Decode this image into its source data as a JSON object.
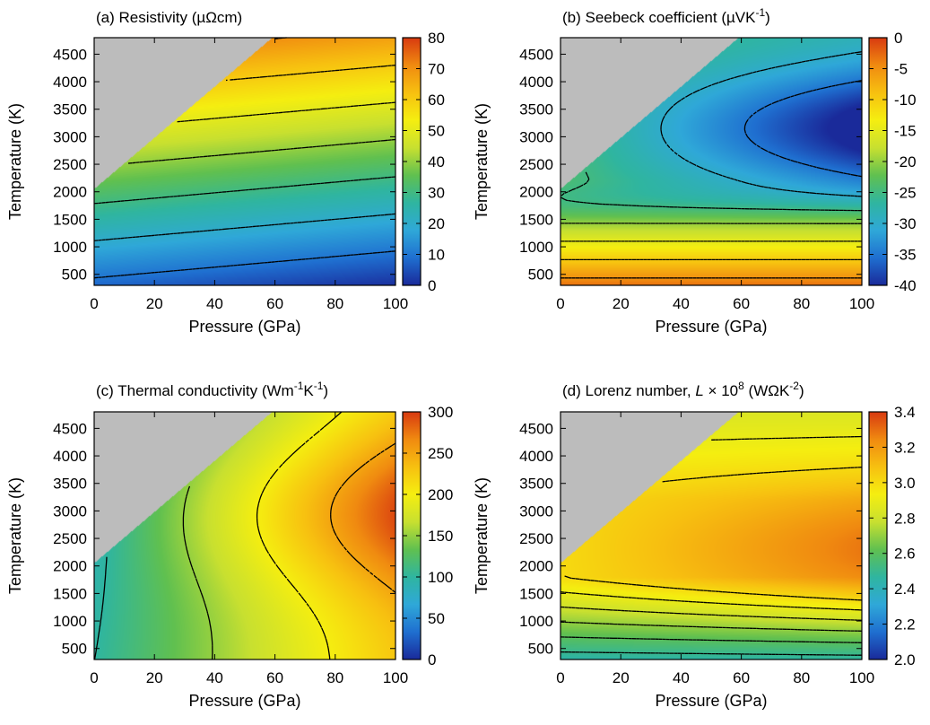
{
  "colormap": [
    "#1a2a9a",
    "#1f6fd0",
    "#2fa8d8",
    "#2fb5a0",
    "#60c050",
    "#c8e030",
    "#f5ee10",
    "#f7c010",
    "#f08a10",
    "#d83a10"
  ],
  "masked_color": "#bcbcbc",
  "chart_data": [
    {
      "id": "a",
      "type": "heatmap",
      "title": "(a) Resistivity (µΩcm)",
      "xlabel": "Pressure (GPa)",
      "ylabel": "Temperature (K)",
      "xlim": [
        0,
        100
      ],
      "ylim": [
        300,
        4800
      ],
      "xticks": [
        "0",
        "20",
        "40",
        "60",
        "80",
        "100"
      ],
      "yticks": [
        "500",
        "1000",
        "1500",
        "2000",
        "2500",
        "3000",
        "3500",
        "4000",
        "4500"
      ],
      "colorbar": {
        "min": 0,
        "max": 80,
        "ticks": [
          "0",
          "10",
          "20",
          "30",
          "40",
          "50",
          "60",
          "70",
          "80"
        ]
      },
      "masked_region": {
        "description": "no data above line",
        "t_at_p0": 2050,
        "t_at_p100": 6700
      },
      "field": {
        "model": "resistivity"
      },
      "contour_levels": [
        10,
        20,
        30,
        40,
        50,
        60,
        70
      ]
    },
    {
      "id": "b",
      "type": "heatmap",
      "title": "(b) Seebeck coefficient (µVK-1)",
      "xlabel": "Pressure (GPa)",
      "ylabel": "Temperature (K)",
      "xlim": [
        0,
        100
      ],
      "ylim": [
        300,
        4800
      ],
      "xticks": [
        "0",
        "20",
        "40",
        "60",
        "80",
        "100"
      ],
      "yticks": [
        "500",
        "1000",
        "1500",
        "2000",
        "2500",
        "3000",
        "3500",
        "4000",
        "4500"
      ],
      "colorbar": {
        "min": -40,
        "max": 0,
        "ticks": [
          "-40",
          "-35",
          "-30",
          "-25",
          "-20",
          "-15",
          "-10",
          "-5",
          "0"
        ]
      },
      "masked_region": {
        "description": "no data above line",
        "t_at_p0": 2050,
        "t_at_p100": 6700
      },
      "field": {
        "model": "seebeck"
      },
      "contour_levels": [
        -35,
        -30,
        -25,
        -20,
        -15,
        -10,
        -5
      ]
    },
    {
      "id": "c",
      "type": "heatmap",
      "title": "(c) Thermal conductivity (Wm-1K-1)",
      "xlabel": "Pressure (GPa)",
      "ylabel": "Temperature (K)",
      "xlim": [
        0,
        100
      ],
      "ylim": [
        300,
        4800
      ],
      "xticks": [
        "0",
        "20",
        "40",
        "60",
        "80",
        "100"
      ],
      "yticks": [
        "500",
        "1000",
        "1500",
        "2000",
        "2500",
        "3000",
        "3500",
        "4000",
        "4500"
      ],
      "colorbar": {
        "min": 0,
        "max": 300,
        "ticks": [
          "0",
          "50",
          "100",
          "150",
          "200",
          "250",
          "300"
        ]
      },
      "masked_region": {
        "description": "no data above line",
        "t_at_p0": 2050,
        "t_at_p100": 6700
      },
      "field": {
        "model": "conductivity"
      },
      "contour_levels": [
        100,
        150,
        200,
        250
      ]
    },
    {
      "id": "d",
      "type": "heatmap",
      "title": "(d) Lorenz number, L × 108 (WΩK-2)",
      "xlabel": "Pressure (GPa)",
      "ylabel": "Temperature (K)",
      "xlim": [
        0,
        100
      ],
      "ylim": [
        300,
        4800
      ],
      "xticks": [
        "0",
        "20",
        "40",
        "60",
        "80",
        "100"
      ],
      "yticks": [
        "500",
        "1000",
        "1500",
        "2000",
        "2500",
        "3000",
        "3500",
        "4000",
        "4500"
      ],
      "colorbar": {
        "min": 2.0,
        "max": 3.4,
        "ticks": [
          "2.0",
          "2.2",
          "2.4",
          "2.6",
          "2.8",
          "3.0",
          "3.2",
          "3.4"
        ]
      },
      "masked_region": {
        "description": "no data above line",
        "t_at_p0": 2050,
        "t_at_p100": 6700
      },
      "field": {
        "model": "lorenz"
      },
      "contour_levels": [
        2.5,
        2.6,
        2.7,
        2.8,
        2.9,
        3.0
      ]
    }
  ]
}
